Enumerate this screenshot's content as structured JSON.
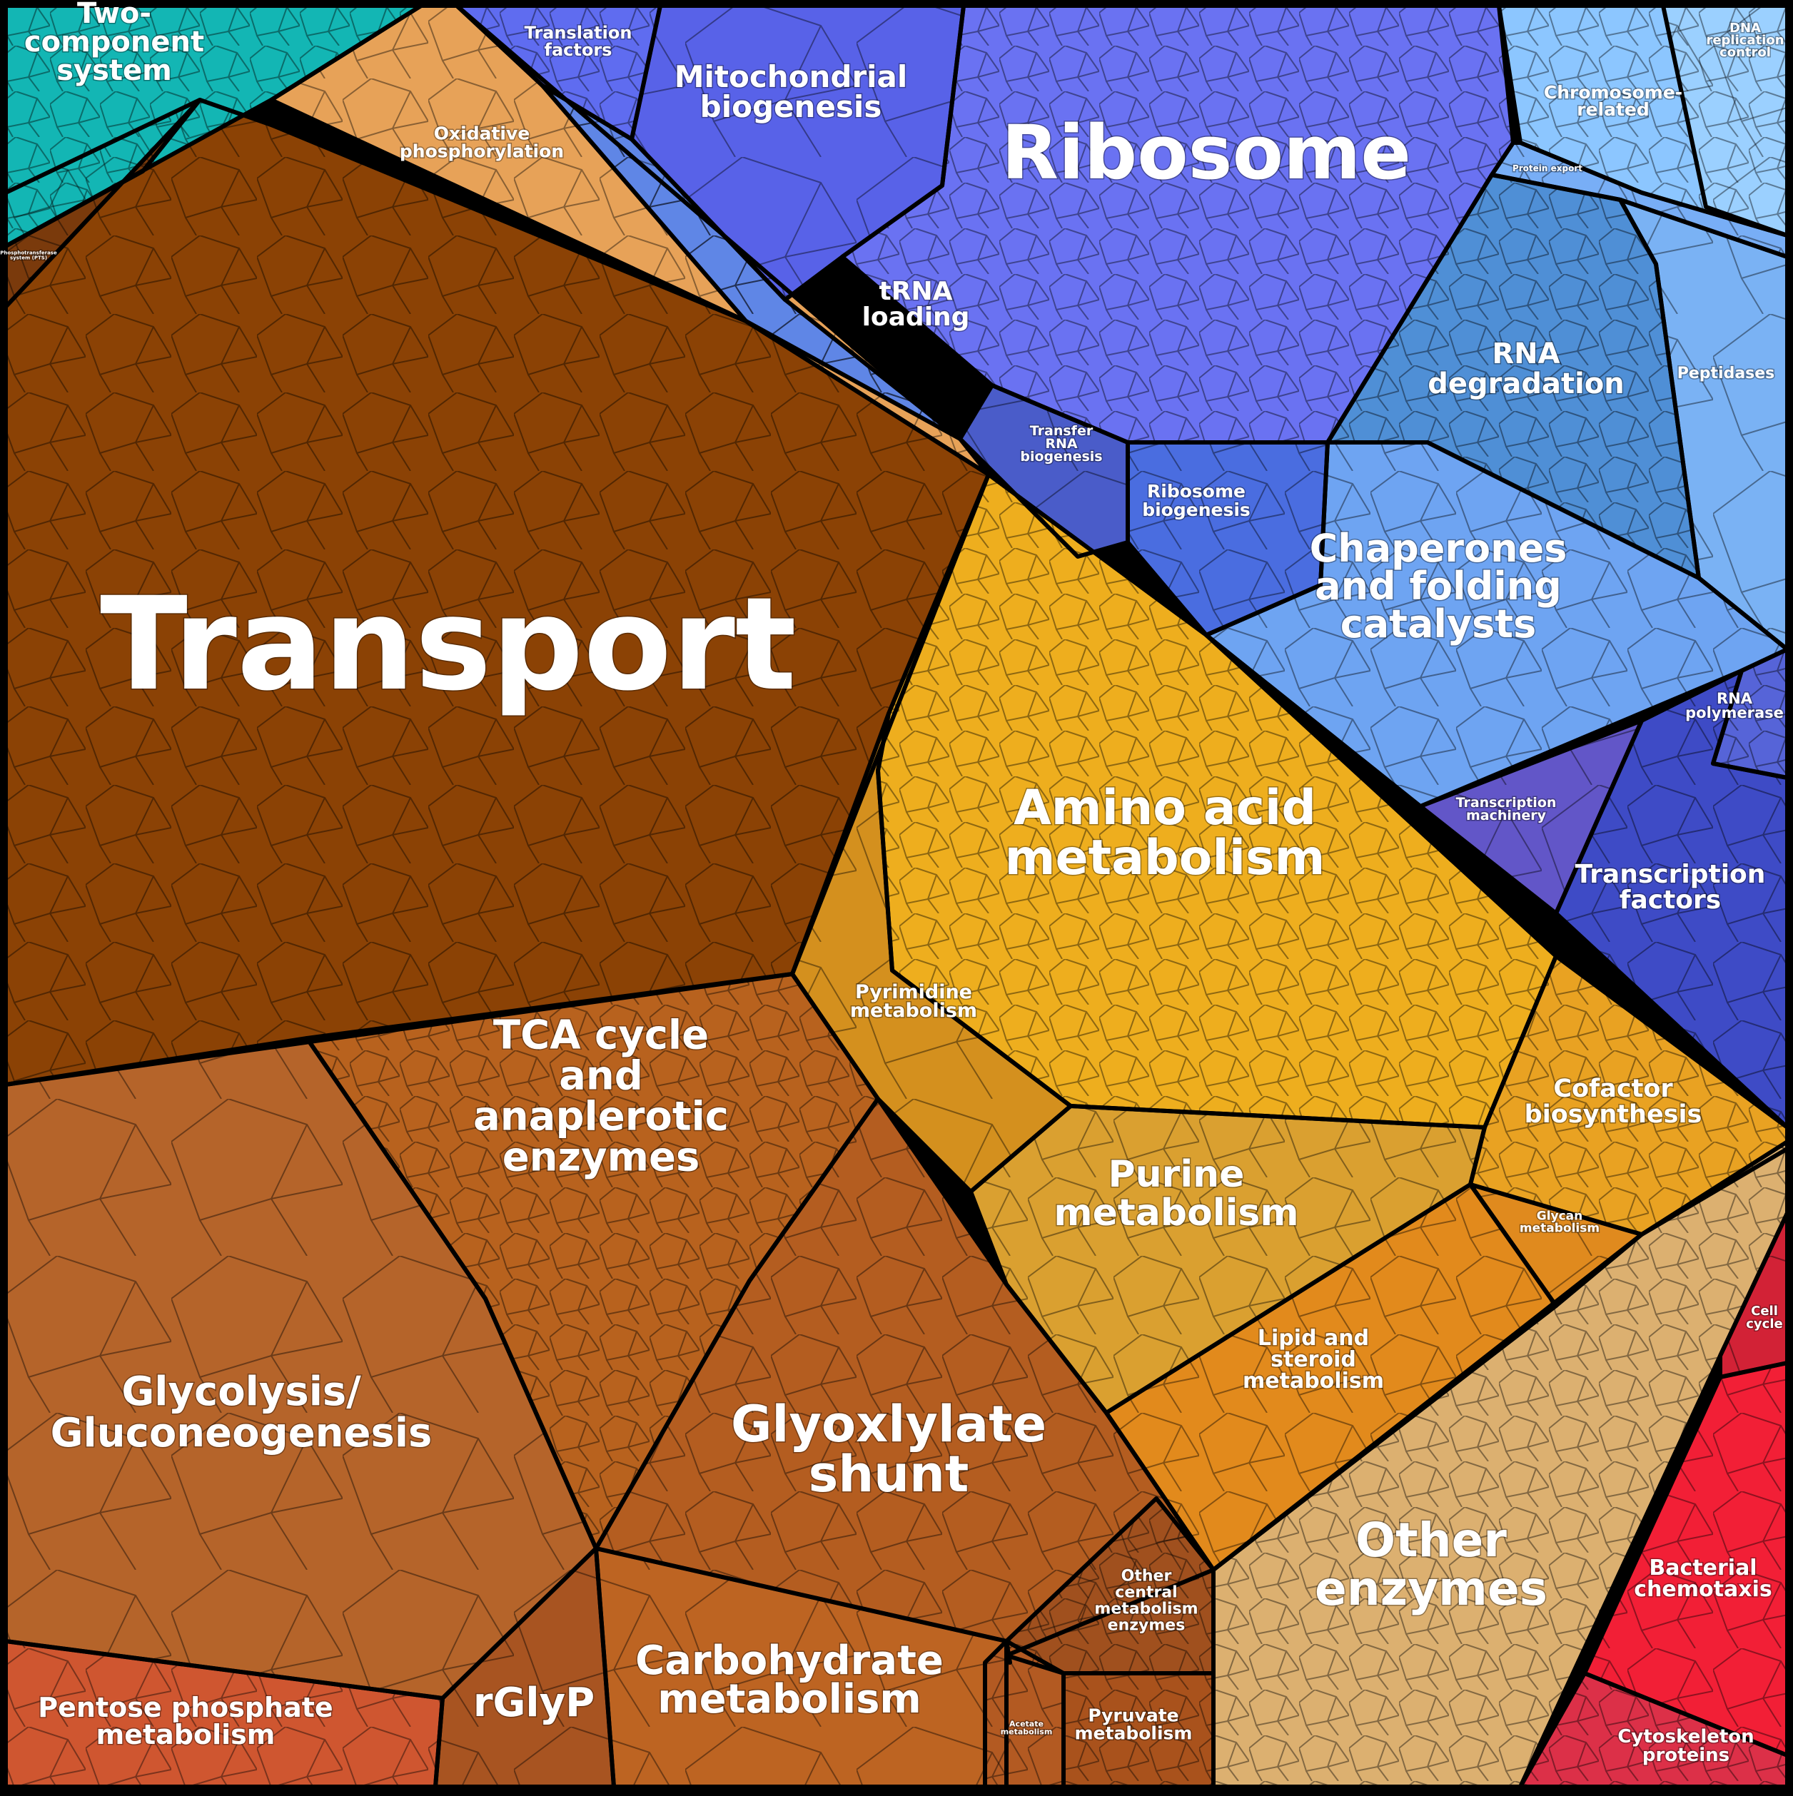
{
  "diagram": {
    "type": "voronoi-treemap",
    "colors": {
      "metabolism_brown": "#8a3f05",
      "central_orange": "#b4601e",
      "amino_gold": "#e9a81c",
      "info_blue": "#6470ee",
      "light_blue": "#86b8ff",
      "teal": "#12b7b5",
      "tan": "#d9ae6e",
      "red": "#ee2a3c",
      "indigo": "#3f48c4"
    },
    "regions": [
      {
        "id": "two-component-system",
        "label": "Two-\ncomponent\nsystem",
        "color": "#13b6b4"
      },
      {
        "id": "phosphotransferase-system",
        "label": "Phosphotransferase\nsystem (PTS)",
        "color": "#7a3a0c"
      },
      {
        "id": "oxidative-phosphorylation",
        "label": "Oxidative\nphosphorylation",
        "color": "#e7a258"
      },
      {
        "id": "transport",
        "label": "Transport",
        "color": "#8b4205"
      },
      {
        "id": "translation-factors",
        "label": "Translation\nfactors",
        "color": "#5f6cf0"
      },
      {
        "id": "mitochondrial-biogenesis",
        "label": "Mitochondrial\nbiogenesis",
        "color": "#5862e8"
      },
      {
        "id": "ribosome",
        "label": "Ribosome",
        "color": "#6a72f2"
      },
      {
        "id": "trna-loading",
        "label": "tRNA\nloading",
        "color": "#5f86e6"
      },
      {
        "id": "transfer-rna-biogenesis",
        "label": "Transfer\nRNA\nbiogenesis",
        "color": "#4a5cc9"
      },
      {
        "id": "ribosome-biogenesis",
        "label": "Ribosome\nbiogenesis",
        "color": "#4a6de0"
      },
      {
        "id": "chromosome-related",
        "label": "Chromosome-\nrelated",
        "color": "#8cc6ff"
      },
      {
        "id": "dna-replication-control",
        "label": "DNA\nreplication\ncontrol",
        "color": "#9bd0ff"
      },
      {
        "id": "protein-export",
        "label": "Protein export",
        "color": "#78aef6"
      },
      {
        "id": "rna-degradation",
        "label": "RNA\ndegradation",
        "color": "#4f8fd6"
      },
      {
        "id": "peptidases",
        "label": "Peptidases",
        "color": "#7ab2f4"
      },
      {
        "id": "chaperones",
        "label": "Chaperones\nand folding\ncatalysts",
        "color": "#6ea4f2"
      },
      {
        "id": "rna-polymerase",
        "label": "RNA\npolymerase",
        "color": "#5664d8"
      },
      {
        "id": "transcription-machinery",
        "label": "Transcription\nmachinery",
        "color": "#6256c8"
      },
      {
        "id": "transcription-factors",
        "label": "Transcription\nfactors",
        "color": "#3e4bc6"
      },
      {
        "id": "amino-acid-metabolism",
        "label": "Amino acid\nmetabolism",
        "color": "#eeae1e"
      },
      {
        "id": "pyrimidine-metabolism",
        "label": "Pyrimidine\nmetabolism",
        "color": "#d4901e"
      },
      {
        "id": "purine-metabolism",
        "label": "Purine\nmetabolism",
        "color": "#daa030"
      },
      {
        "id": "cofactor-biosynthesis",
        "label": "Cofactor\nbiosynthesis",
        "color": "#e9a222"
      },
      {
        "id": "glycan-metabolism",
        "label": "Glycan\nmetabolism",
        "color": "#e08a1e"
      },
      {
        "id": "lipid-steroid-metabolism",
        "label": "Lipid and\nsteroid\nmetabolism",
        "color": "#e28a1c"
      },
      {
        "id": "tca-cycle",
        "label": "TCA cycle\nand\nanaplerotic\nenzymes",
        "color": "#b8621e"
      },
      {
        "id": "glycolysis",
        "label": "Glycolysis/\nGluconeogenesis",
        "color": "#b5642a"
      },
      {
        "id": "glyoxylate-shunt",
        "label": "Glyoxlylate\nshunt",
        "color": "#b45d20"
      },
      {
        "id": "pentose-phosphate",
        "label": "Pentose phosphate\nmetabolism",
        "color": "#cf5630"
      },
      {
        "id": "rglyp",
        "label": "rGlyP",
        "color": "#a85421"
      },
      {
        "id": "carbohydrate-metabolism",
        "label": "Carbohydrate\nmetabolism",
        "color": "#bd6422"
      },
      {
        "id": "other-central-metabolism",
        "label": "Other\ncentral\nmetabolism\nenzymes",
        "color": "#a0501e"
      },
      {
        "id": "acetate-metabolism",
        "label": "Acetate\nmetabolism",
        "color": "#b35a22"
      },
      {
        "id": "pyruvate-metabolism",
        "label": "Pyruvate\nmetabolism",
        "color": "#a9521c"
      },
      {
        "id": "other-enzymes",
        "label": "Other\nenzymes",
        "color": "#dcb070"
      },
      {
        "id": "cell-cycle",
        "label": "Cell\ncycle",
        "color": "#d22236"
      },
      {
        "id": "bacterial-chemotaxis",
        "label": "Bacterial\nchemotaxis",
        "color": "#f21f36"
      },
      {
        "id": "cytoskeleton-proteins",
        "label": "Cytoskeleton\nproteins",
        "color": "#dc3048"
      }
    ]
  }
}
